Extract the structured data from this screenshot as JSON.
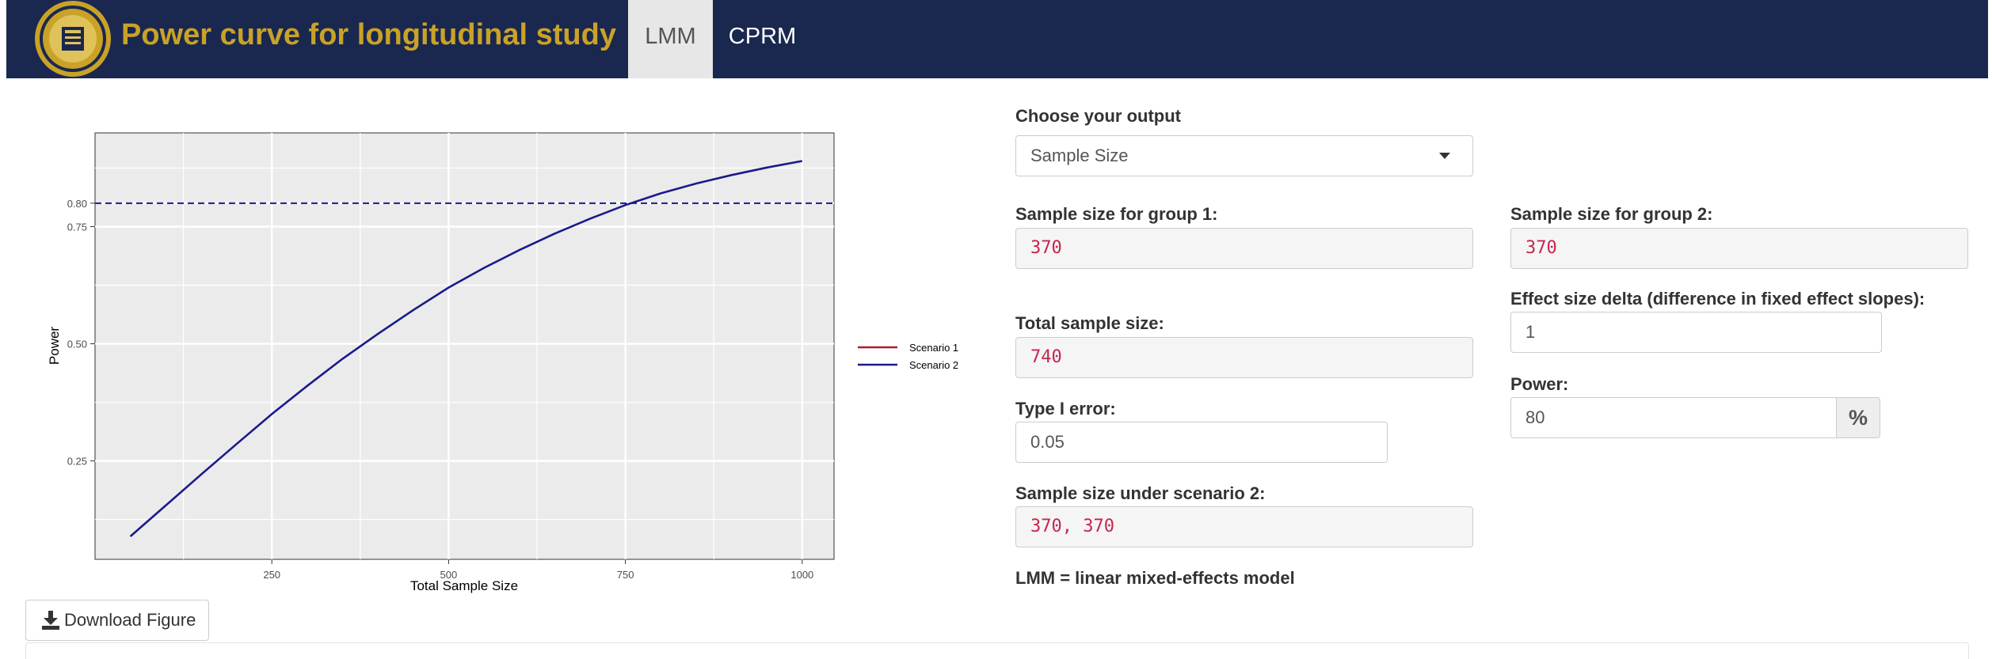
{
  "app": {
    "title": "Power curve for longitudinal study",
    "tabs": [
      {
        "label": "LMM",
        "active": true
      },
      {
        "label": "CPRM",
        "active": false
      }
    ],
    "colors": {
      "navbar": "#1a2850",
      "brand": "#c9a227",
      "active_tab": "#e7e7e7"
    }
  },
  "form": {
    "output_label": "Choose your output",
    "output_value": "Sample Size",
    "group1_label": "Sample size for group 1:",
    "group1_value": "370",
    "group2_label": "Sample size for group 2:",
    "group2_value": "370",
    "effect_label": "Effect size delta (difference in fixed effect slopes):",
    "effect_value": "1",
    "total_label": "Total sample size:",
    "total_value": "740",
    "power_label": "Power:",
    "power_value": "80",
    "power_unit": "%",
    "type1_label": "Type I error:",
    "type1_value": "0.05",
    "scenario2_label": "Sample size under scenario 2:",
    "scenario2_value": "370, 370",
    "note": "LMM = linear mixed-effects model"
  },
  "download": {
    "label": "Download Figure",
    "icon": "download-icon"
  },
  "chart_data": {
    "type": "line",
    "xlabel": "Total Sample Size",
    "ylabel": "Power",
    "xlim": [
      0,
      1045
    ],
    "ylim": [
      0.04,
      0.95
    ],
    "x_ticks": [
      250,
      500,
      750,
      1000
    ],
    "x_tick_labels": [
      "250",
      "500",
      "750",
      "1000"
    ],
    "y_ticks": [
      0.25,
      0.5,
      0.75,
      0.8
    ],
    "y_tick_labels": [
      "0.25",
      "0.50",
      "0.75",
      "0.80"
    ],
    "reference_line": {
      "y": 0.8,
      "style": "dashed",
      "color": "#1a1a8c"
    },
    "grid": true,
    "legend_position": "right",
    "series": [
      {
        "name": "Scenario 1",
        "color": "#b2182b",
        "x": [],
        "y": []
      },
      {
        "name": "Scenario 2",
        "color": "#1a1a8c",
        "x": [
          50,
          100,
          150,
          200,
          250,
          300,
          350,
          400,
          450,
          500,
          550,
          600,
          650,
          700,
          750,
          800,
          850,
          900,
          950,
          1000
        ],
        "y": [
          0.089,
          0.155,
          0.221,
          0.286,
          0.35,
          0.41,
          0.468,
          0.521,
          0.572,
          0.62,
          0.662,
          0.7,
          0.735,
          0.767,
          0.796,
          0.821,
          0.842,
          0.86,
          0.876,
          0.89
        ]
      }
    ]
  }
}
